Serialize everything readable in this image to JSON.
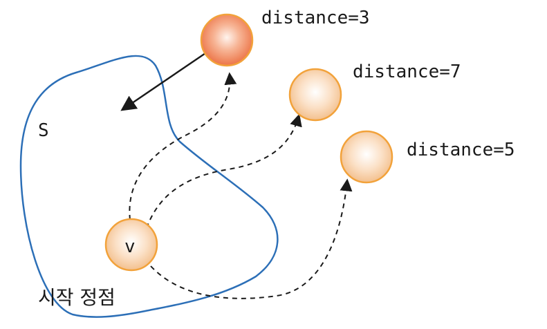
{
  "diagram": {
    "set_label": "S",
    "start_vertex_label": "v",
    "start_caption": "시작 정점",
    "nodes": [
      {
        "id": "n1",
        "distance_text": "distance=3",
        "highlighted": true
      },
      {
        "id": "n2",
        "distance_text": "distance=7",
        "highlighted": false
      },
      {
        "id": "n3",
        "distance_text": "distance=5",
        "highlighted": false
      }
    ],
    "colors": {
      "set_outline": "#2c6fb7",
      "node_fill_highlight_center": "#fde3d2",
      "node_fill_highlight_edge": "#ec7a4d",
      "node_fill_normal_center": "#fff6ee",
      "node_fill_normal_edge": "#f2c290",
      "node_stroke": "#f2a23a",
      "edge": "#1a1a1a"
    }
  }
}
